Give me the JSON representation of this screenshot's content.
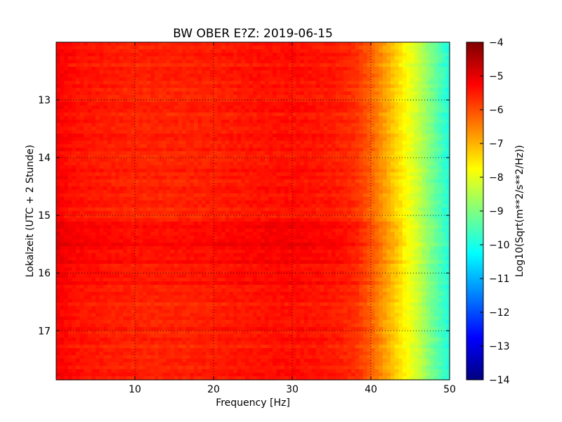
{
  "chart_data": {
    "type": "heatmap",
    "title": "BW OBER E?Z: 2019-06-15",
    "xlabel": "Frequency [Hz]",
    "ylabel": "Lokalzeit (UTC + 2 Stunde)",
    "xlim": [
      0,
      50
    ],
    "ylim": [
      12.0,
      17.85
    ],
    "y_inverted": true,
    "x_ticks": [
      10,
      20,
      30,
      40,
      50
    ],
    "y_ticks": [
      13,
      14,
      15,
      16,
      17
    ],
    "grid": true,
    "colormap": "jet",
    "colorbar": {
      "label": "Log10(Sqrt(m**2/s**2/Hz))",
      "min": -14,
      "max": -4,
      "ticks": [
        -4,
        -5,
        -6,
        -7,
        -8,
        -9,
        -10,
        -11,
        -12,
        -13,
        -14
      ]
    },
    "frequency_profile": {
      "x": [
        0,
        2,
        5,
        10,
        15,
        20,
        25,
        30,
        35,
        38,
        40,
        42,
        44,
        46,
        48,
        50
      ],
      "value": [
        -5.2,
        -5.4,
        -5.5,
        -5.6,
        -5.6,
        -5.55,
        -5.45,
        -5.4,
        -5.5,
        -5.7,
        -6.2,
        -6.9,
        -7.6,
        -8.3,
        -9.2,
        -10.0
      ]
    },
    "time_segments": [
      {
        "from": 15.1,
        "to": 15.85,
        "offset": 0.25
      },
      {
        "from": 15.85,
        "to": 16.2,
        "offset": 0.15
      }
    ],
    "notes": []
  }
}
